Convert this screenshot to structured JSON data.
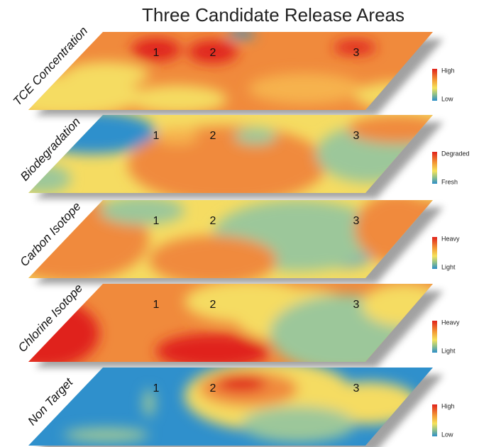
{
  "title": "Three Candidate Release Areas",
  "markers": [
    "1",
    "2",
    "3"
  ],
  "layers": [
    {
      "label": "TCE Concentration",
      "legend_high": "High",
      "legend_low": "Low"
    },
    {
      "label": "Biodegradation",
      "legend_high": "Degraded",
      "legend_low": "Fresh"
    },
    {
      "label": "Carbon Isotope",
      "legend_high": "Heavy",
      "legend_low": "Light"
    },
    {
      "label": "Chlorine Isotope",
      "legend_high": "Heavy",
      "legend_low": "Light"
    },
    {
      "label": "Non Target",
      "legend_high": "High",
      "legend_low": "Low"
    }
  ]
}
